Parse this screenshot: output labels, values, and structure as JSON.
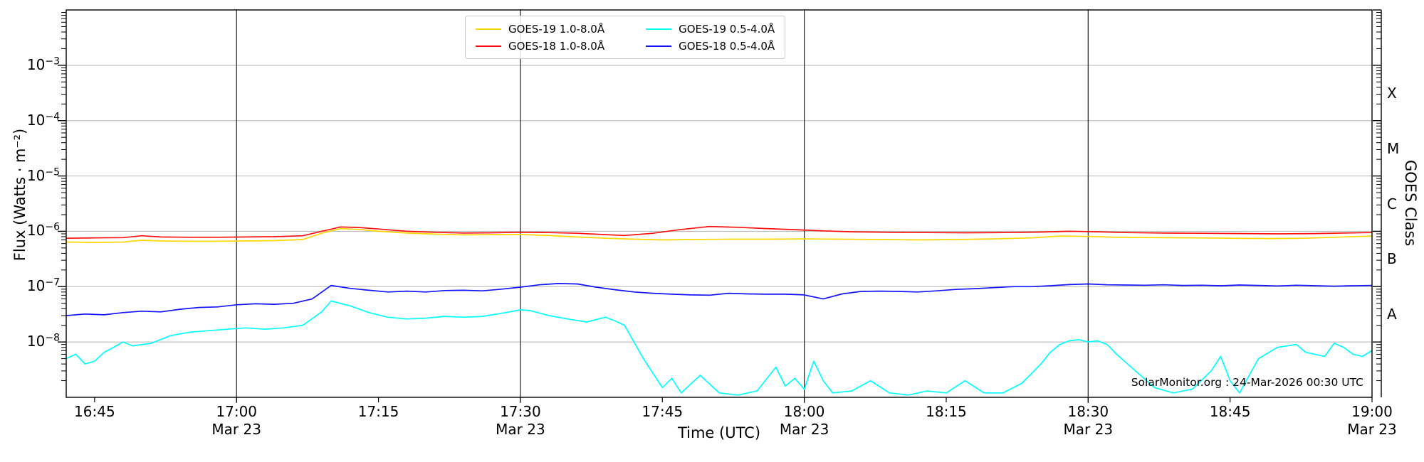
{
  "figure": {
    "watermark": "SolarMonitor.org : 24-Mar-2026 00:30 UTC",
    "background": "#ffffff"
  },
  "chart_data": {
    "type": "line",
    "title": "",
    "xlabel": "Time (UTC)",
    "ylabel": "Flux (Watts · m⁻²)",
    "ylabel_right": "GOES Class",
    "y_scale": "log",
    "ylim": [
      1e-09,
      0.01
    ],
    "y_tick_exponents": [
      -3,
      -4,
      -5,
      -6,
      -7,
      -8
    ],
    "x_range": [
      "16:42",
      "19:00"
    ],
    "x_ticks": [
      {
        "t": "16:45",
        "sub": ""
      },
      {
        "t": "17:00",
        "sub": "Mar 23"
      },
      {
        "t": "17:15",
        "sub": ""
      },
      {
        "t": "17:30",
        "sub": "Mar 23"
      },
      {
        "t": "17:45",
        "sub": ""
      },
      {
        "t": "18:00",
        "sub": "Mar 23"
      },
      {
        "t": "18:15",
        "sub": ""
      },
      {
        "t": "18:30",
        "sub": "Mar 23"
      },
      {
        "t": "18:45",
        "sub": ""
      },
      {
        "t": "19:00",
        "sub": "Mar 23"
      }
    ],
    "vertical_gridline_times": [
      "17:00",
      "17:30",
      "18:00",
      "18:30"
    ],
    "grid_color_horizontal": "#b3b3b3",
    "grid_color_vertical": "#1f1f1f",
    "goes_classes": [
      {
        "label": "A",
        "center_exponent": -7.5
      },
      {
        "label": "B",
        "center_exponent": -6.5
      },
      {
        "label": "C",
        "center_exponent": -5.5
      },
      {
        "label": "M",
        "center_exponent": -4.5
      },
      {
        "label": "X",
        "center_exponent": -3.5
      }
    ],
    "legend_position": "top-center",
    "legend_columns": 2,
    "series": [
      {
        "name": "GOES-19 1.0-8.0Å",
        "color": "#ffd700",
        "points": [
          [
            "16:42",
            6.4e-07
          ],
          [
            "16:45",
            6.3e-07
          ],
          [
            "16:48",
            6.4e-07
          ],
          [
            "16:50",
            6.9e-07
          ],
          [
            "16:52",
            6.7e-07
          ],
          [
            "16:55",
            6.6e-07
          ],
          [
            "16:58",
            6.6e-07
          ],
          [
            "17:01",
            6.7e-07
          ],
          [
            "17:04",
            6.8e-07
          ],
          [
            "17:07",
            7.1e-07
          ],
          [
            "17:09",
            9.2e-07
          ],
          [
            "17:11",
            1.12e-06
          ],
          [
            "17:13",
            1.08e-06
          ],
          [
            "17:15",
            1e-06
          ],
          [
            "17:18",
            9.3e-07
          ],
          [
            "17:21",
            8.9e-07
          ],
          [
            "17:24",
            8.6e-07
          ],
          [
            "17:27",
            8.7e-07
          ],
          [
            "17:30",
            8.8e-07
          ],
          [
            "17:33",
            8.4e-07
          ],
          [
            "17:36",
            7.9e-07
          ],
          [
            "17:39",
            7.5e-07
          ],
          [
            "17:42",
            7.2e-07
          ],
          [
            "17:45",
            7e-07
          ],
          [
            "17:48",
            7.1e-07
          ],
          [
            "17:52",
            7.2e-07
          ],
          [
            "17:56",
            7.2e-07
          ],
          [
            "18:00",
            7.3e-07
          ],
          [
            "18:04",
            7.2e-07
          ],
          [
            "18:08",
            7.1e-07
          ],
          [
            "18:12",
            7e-07
          ],
          [
            "18:16",
            7.1e-07
          ],
          [
            "18:20",
            7.3e-07
          ],
          [
            "18:24",
            7.6e-07
          ],
          [
            "18:27",
            8.2e-07
          ],
          [
            "18:30",
            8.1e-07
          ],
          [
            "18:33",
            7.8e-07
          ],
          [
            "18:37",
            7.7e-07
          ],
          [
            "18:41",
            7.6e-07
          ],
          [
            "18:45",
            7.5e-07
          ],
          [
            "18:49",
            7.4e-07
          ],
          [
            "18:53",
            7.5e-07
          ],
          [
            "18:56",
            7.8e-07
          ],
          [
            "19:00",
            8.2e-07
          ]
        ]
      },
      {
        "name": "GOES-18 1.0-8.0Å",
        "color": "#ff0f0f",
        "points": [
          [
            "16:42",
            7.5e-07
          ],
          [
            "16:45",
            7.6e-07
          ],
          [
            "16:48",
            7.7e-07
          ],
          [
            "16:50",
            8.3e-07
          ],
          [
            "16:52",
            7.9e-07
          ],
          [
            "16:55",
            7.8e-07
          ],
          [
            "16:58",
            7.8e-07
          ],
          [
            "17:01",
            7.9e-07
          ],
          [
            "17:04",
            8e-07
          ],
          [
            "17:07",
            8.3e-07
          ],
          [
            "17:09",
            1e-06
          ],
          [
            "17:11",
            1.2e-06
          ],
          [
            "17:13",
            1.17e-06
          ],
          [
            "17:15",
            1.1e-06
          ],
          [
            "17:18",
            1e-06
          ],
          [
            "17:21",
            9.6e-07
          ],
          [
            "17:24",
            9.3e-07
          ],
          [
            "17:27",
            9.4e-07
          ],
          [
            "17:30",
            9.6e-07
          ],
          [
            "17:33",
            9.5e-07
          ],
          [
            "17:36",
            9.2e-07
          ],
          [
            "17:39",
            8.7e-07
          ],
          [
            "17:41",
            8.4e-07
          ],
          [
            "17:44",
            9.2e-07
          ],
          [
            "17:47",
            1.08e-06
          ],
          [
            "17:50",
            1.22e-06
          ],
          [
            "17:53",
            1.18e-06
          ],
          [
            "17:56",
            1.12e-06
          ],
          [
            "17:59",
            1.07e-06
          ],
          [
            "18:02",
            1.02e-06
          ],
          [
            "18:05",
            9.8e-07
          ],
          [
            "18:09",
            9.6e-07
          ],
          [
            "18:13",
            9.5e-07
          ],
          [
            "18:17",
            9.4e-07
          ],
          [
            "18:21",
            9.5e-07
          ],
          [
            "18:25",
            9.7e-07
          ],
          [
            "18:28",
            1e-06
          ],
          [
            "18:31",
            9.8e-07
          ],
          [
            "18:34",
            9.5e-07
          ],
          [
            "18:38",
            9.3e-07
          ],
          [
            "18:42",
            9.2e-07
          ],
          [
            "18:46",
            9.1e-07
          ],
          [
            "18:50",
            9e-07
          ],
          [
            "18:54",
            9.1e-07
          ],
          [
            "18:57",
            9.3e-07
          ],
          [
            "19:00",
            9.5e-07
          ]
        ]
      },
      {
        "name": "GOES-19 0.5-4.0Å",
        "color": "#00ffff",
        "points": [
          [
            "16:42",
            5e-09
          ],
          [
            "16:43",
            6e-09
          ],
          [
            "16:44",
            4e-09
          ],
          [
            "16:45",
            4.5e-09
          ],
          [
            "16:46",
            6.5e-09
          ],
          [
            "16:47",
            8e-09
          ],
          [
            "16:48",
            1e-08
          ],
          [
            "16:49",
            8.5e-09
          ],
          [
            "16:51",
            9.5e-09
          ],
          [
            "16:53",
            1.3e-08
          ],
          [
            "16:55",
            1.5e-08
          ],
          [
            "16:57",
            1.6e-08
          ],
          [
            "16:59",
            1.7e-08
          ],
          [
            "17:01",
            1.8e-08
          ],
          [
            "17:03",
            1.7e-08
          ],
          [
            "17:05",
            1.8e-08
          ],
          [
            "17:07",
            2e-08
          ],
          [
            "17:09",
            3.5e-08
          ],
          [
            "17:10",
            5.5e-08
          ],
          [
            "17:12",
            4.5e-08
          ],
          [
            "17:14",
            3.4e-08
          ],
          [
            "17:16",
            2.8e-08
          ],
          [
            "17:18",
            2.6e-08
          ],
          [
            "17:20",
            2.7e-08
          ],
          [
            "17:22",
            2.9e-08
          ],
          [
            "17:24",
            2.8e-08
          ],
          [
            "17:26",
            2.9e-08
          ],
          [
            "17:28",
            3.3e-08
          ],
          [
            "17:30",
            3.8e-08
          ],
          [
            "17:31",
            3.7e-08
          ],
          [
            "17:33",
            3e-08
          ],
          [
            "17:35",
            2.6e-08
          ],
          [
            "17:37",
            2.3e-08
          ],
          [
            "17:39",
            2.8e-08
          ],
          [
            "17:40",
            2.4e-08
          ],
          [
            "17:41",
            2e-08
          ],
          [
            "17:43",
            5e-09
          ],
          [
            "17:45",
            1.5e-09
          ],
          [
            "17:46",
            2.2e-09
          ],
          [
            "17:47",
            1.2e-09
          ],
          [
            "17:49",
            2.5e-09
          ],
          [
            "17:51",
            1.2e-09
          ],
          [
            "17:53",
            1.1e-09
          ],
          [
            "17:55",
            1.3e-09
          ],
          [
            "17:57",
            3.5e-09
          ],
          [
            "17:58",
            1.6e-09
          ],
          [
            "17:59",
            2.2e-09
          ],
          [
            "18:00",
            1.4e-09
          ],
          [
            "18:01",
            4.5e-09
          ],
          [
            "18:02",
            2e-09
          ],
          [
            "18:03",
            1.2e-09
          ],
          [
            "18:05",
            1.3e-09
          ],
          [
            "18:07",
            2e-09
          ],
          [
            "18:09",
            1.2e-09
          ],
          [
            "18:11",
            1.1e-09
          ],
          [
            "18:13",
            1.3e-09
          ],
          [
            "18:15",
            1.2e-09
          ],
          [
            "18:17",
            2e-09
          ],
          [
            "18:19",
            1.2e-09
          ],
          [
            "18:21",
            1.2e-09
          ],
          [
            "18:23",
            1.8e-09
          ],
          [
            "18:25",
            4e-09
          ],
          [
            "18:26",
            6.5e-09
          ],
          [
            "18:27",
            9e-09
          ],
          [
            "18:28",
            1.05e-08
          ],
          [
            "18:29",
            1.1e-08
          ],
          [
            "18:30",
            1e-08
          ],
          [
            "18:31",
            1.05e-08
          ],
          [
            "18:32",
            9e-09
          ],
          [
            "18:33",
            6e-09
          ],
          [
            "18:35",
            3e-09
          ],
          [
            "18:37",
            1.5e-09
          ],
          [
            "18:39",
            1.2e-09
          ],
          [
            "18:41",
            1.4e-09
          ],
          [
            "18:43",
            3e-09
          ],
          [
            "18:44",
            5.5e-09
          ],
          [
            "18:45",
            2e-09
          ],
          [
            "18:46",
            1.2e-09
          ],
          [
            "18:48",
            5e-09
          ],
          [
            "18:50",
            8e-09
          ],
          [
            "18:52",
            9e-09
          ],
          [
            "18:53",
            6.5e-09
          ],
          [
            "18:55",
            5.5e-09
          ],
          [
            "18:56",
            9.5e-09
          ],
          [
            "18:57",
            8e-09
          ],
          [
            "18:58",
            6e-09
          ],
          [
            "18:59",
            5.5e-09
          ],
          [
            "19:00",
            7e-09
          ]
        ]
      },
      {
        "name": "GOES-18 0.5-4.0Å",
        "color": "#1414ff",
        "points": [
          [
            "16:42",
            3e-08
          ],
          [
            "16:44",
            3.2e-08
          ],
          [
            "16:46",
            3.1e-08
          ],
          [
            "16:48",
            3.4e-08
          ],
          [
            "16:50",
            3.6e-08
          ],
          [
            "16:52",
            3.5e-08
          ],
          [
            "16:54",
            3.9e-08
          ],
          [
            "16:56",
            4.2e-08
          ],
          [
            "16:58",
            4.3e-08
          ],
          [
            "17:00",
            4.7e-08
          ],
          [
            "17:02",
            4.9e-08
          ],
          [
            "17:04",
            4.8e-08
          ],
          [
            "17:06",
            5e-08
          ],
          [
            "17:08",
            6e-08
          ],
          [
            "17:10",
            1.05e-07
          ],
          [
            "17:12",
            9.3e-08
          ],
          [
            "17:14",
            8.6e-08
          ],
          [
            "17:16",
            8e-08
          ],
          [
            "17:18",
            8.3e-08
          ],
          [
            "17:20",
            8e-08
          ],
          [
            "17:22",
            8.5e-08
          ],
          [
            "17:24",
            8.6e-08
          ],
          [
            "17:26",
            8.4e-08
          ],
          [
            "17:28",
            9e-08
          ],
          [
            "17:30",
            9.8e-08
          ],
          [
            "17:32",
            1.08e-07
          ],
          [
            "17:34",
            1.14e-07
          ],
          [
            "17:36",
            1.12e-07
          ],
          [
            "17:38",
            9.8e-08
          ],
          [
            "17:40",
            8.8e-08
          ],
          [
            "17:42",
            8e-08
          ],
          [
            "17:44",
            7.6e-08
          ],
          [
            "17:46",
            7.3e-08
          ],
          [
            "17:48",
            7.1e-08
          ],
          [
            "17:50",
            7e-08
          ],
          [
            "17:52",
            7.6e-08
          ],
          [
            "17:54",
            7.4e-08
          ],
          [
            "17:56",
            7.3e-08
          ],
          [
            "17:58",
            7.3e-08
          ],
          [
            "18:00",
            7.1e-08
          ],
          [
            "18:02",
            6e-08
          ],
          [
            "18:04",
            7.4e-08
          ],
          [
            "18:06",
            8.2e-08
          ],
          [
            "18:08",
            8.3e-08
          ],
          [
            "18:10",
            8.2e-08
          ],
          [
            "18:12",
            8e-08
          ],
          [
            "18:14",
            8.4e-08
          ],
          [
            "18:16",
            8.9e-08
          ],
          [
            "18:18",
            9.2e-08
          ],
          [
            "18:20",
            9.6e-08
          ],
          [
            "18:22",
            1e-07
          ],
          [
            "18:24",
            1e-07
          ],
          [
            "18:26",
            1.04e-07
          ],
          [
            "18:28",
            1.09e-07
          ],
          [
            "18:30",
            1.12e-07
          ],
          [
            "18:32",
            1.08e-07
          ],
          [
            "18:34",
            1.07e-07
          ],
          [
            "18:36",
            1.06e-07
          ],
          [
            "18:38",
            1.08e-07
          ],
          [
            "18:40",
            1.05e-07
          ],
          [
            "18:42",
            1.06e-07
          ],
          [
            "18:44",
            1.04e-07
          ],
          [
            "18:46",
            1.07e-07
          ],
          [
            "18:48",
            1.05e-07
          ],
          [
            "18:50",
            1.03e-07
          ],
          [
            "18:52",
            1.06e-07
          ],
          [
            "18:54",
            1.04e-07
          ],
          [
            "18:56",
            1.02e-07
          ],
          [
            "18:58",
            1.04e-07
          ],
          [
            "19:00",
            1.05e-07
          ]
        ]
      }
    ]
  }
}
